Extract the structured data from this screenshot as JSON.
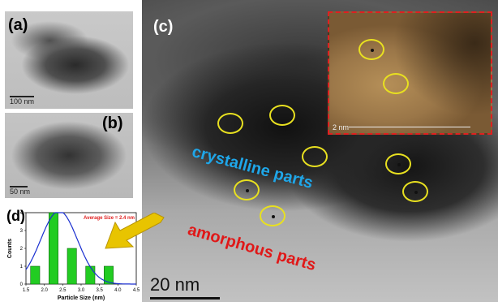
{
  "panel_a": {
    "label": "(a)",
    "scale": "100 nm"
  },
  "panel_b": {
    "label": "(b)",
    "scale": "50 nm"
  },
  "panel_c": {
    "label": "(c)",
    "scale": "20 nm",
    "inset_scale": "2 nm",
    "text_crystalline": "crystalline parts",
    "text_amorphous": "amorphous parts",
    "crystalline_color": "#1fa6e8",
    "amorphous_color": "#e01818",
    "circle_color": "#e8e020"
  },
  "panel_d": {
    "label": "(d)"
  },
  "chart_data": {
    "type": "bar",
    "title": "Average Size = 2.4 nm",
    "xlabel": "Particle Size (nm)",
    "ylabel": "Counts",
    "xlim": [
      1.5,
      4.5
    ],
    "ylim": [
      0,
      4
    ],
    "x_ticks": [
      "1.5",
      "2.0",
      "2.5",
      "3.0",
      "3.5",
      "4.0",
      "4.5"
    ],
    "y_ticks": [
      "0",
      "1",
      "2",
      "3",
      "4"
    ],
    "bars": [
      {
        "x": 1.75,
        "y": 1
      },
      {
        "x": 2.25,
        "y": 4
      },
      {
        "x": 2.75,
        "y": 2
      },
      {
        "x": 3.25,
        "y": 1
      },
      {
        "x": 3.75,
        "y": 1
      }
    ],
    "bar_width": 0.25,
    "fit_curve": {
      "type": "gaussian",
      "mean": 2.4,
      "sigma": 0.5,
      "peak": 4.1
    },
    "bar_color": "#22cc22",
    "curve_color": "#1a2fd0",
    "title_color": "#e02020"
  }
}
